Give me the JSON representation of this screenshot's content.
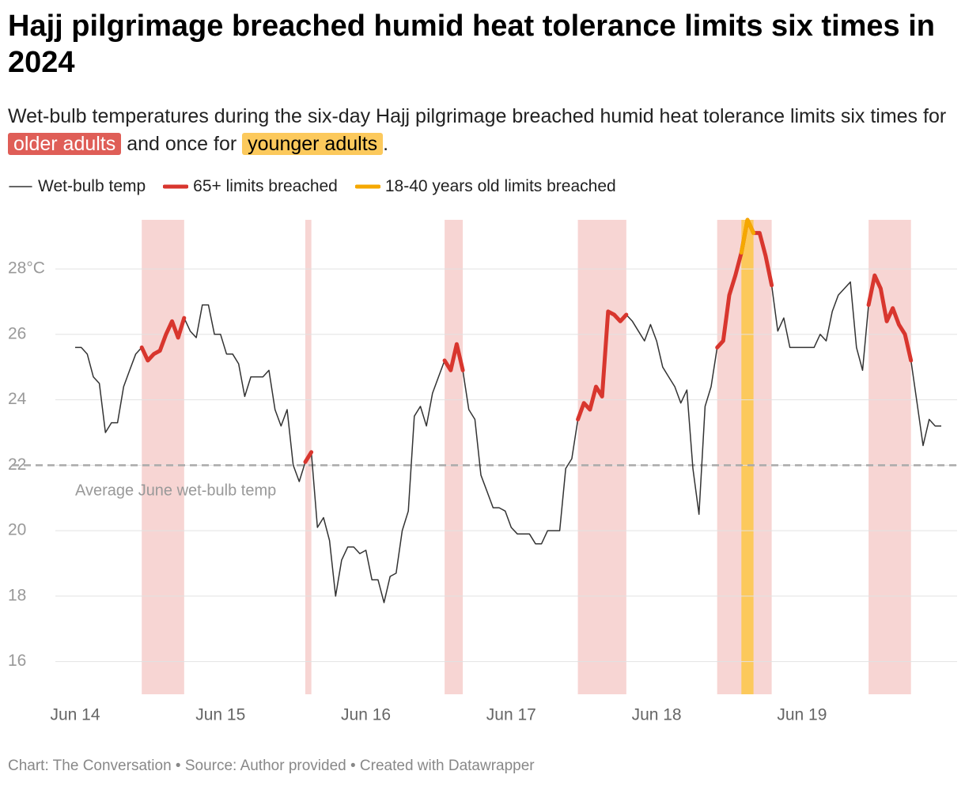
{
  "chart_data": {
    "type": "line",
    "title": "Hajj pilgrimage breached humid heat tolerance limits six times in 2024",
    "subtitle": [
      "Wet-bulb temperatures during the six-day Hajj pilgrimage breached humid heat tolerance limits six times for ",
      "older adults",
      " and once for ",
      "younger adults",
      "."
    ],
    "footer": "Chart: The Conversation • Source: Author provided • Created with Datawrapper",
    "categories": [
      "Jun 14",
      null,
      null,
      null,
      null,
      null,
      null,
      null,
      null,
      null,
      null,
      null,
      null,
      null,
      null,
      null,
      null,
      null,
      null,
      null,
      null,
      null,
      null,
      null,
      "Jun 15",
      null,
      null,
      null,
      null,
      null,
      null,
      null,
      null,
      null,
      null,
      null,
      null,
      null,
      null,
      null,
      null,
      null,
      null,
      null,
      null,
      null,
      null,
      null,
      "Jun 16",
      null,
      null,
      null,
      null,
      null,
      null,
      null,
      null,
      null,
      null,
      null,
      null,
      null,
      null,
      null,
      null,
      null,
      null,
      null,
      null,
      null,
      null,
      null,
      "Jun 17",
      null,
      null,
      null,
      null,
      null,
      null,
      null,
      null,
      null,
      null,
      null,
      null,
      null,
      null,
      null,
      null,
      null,
      null,
      null,
      null,
      null,
      null,
      null,
      "Jun 18",
      null,
      null,
      null,
      null,
      null,
      null,
      null,
      null,
      null,
      null,
      null,
      null,
      null,
      null,
      null,
      null,
      null,
      null,
      null,
      null,
      null,
      null,
      null,
      "Jun 19",
      null,
      null,
      null,
      null,
      null,
      null,
      null,
      null,
      null,
      null,
      null,
      null,
      null,
      null,
      null,
      null,
      null,
      null,
      null,
      null,
      null,
      null,
      null
    ],
    "series": [
      {
        "name": "Wet-bulb temp",
        "color": "#333333",
        "line_width": 1.5,
        "values": [
          25.6,
          25.6,
          25.4,
          24.7,
          24.5,
          23.0,
          23.3,
          23.3,
          24.4,
          24.9,
          25.4,
          25.6,
          25.2,
          25.4,
          25.5,
          26.0,
          26.4,
          25.9,
          26.5,
          26.1,
          25.9,
          26.9,
          26.9,
          26.0,
          26.0,
          25.4,
          25.4,
          25.1,
          24.1,
          24.7,
          24.7,
          24.7,
          24.9,
          23.7,
          23.2,
          23.7,
          22.0,
          21.5,
          22.1,
          22.4,
          20.1,
          20.4,
          19.7,
          18.0,
          19.1,
          19.5,
          19.5,
          19.3,
          19.4,
          18.5,
          18.5,
          17.8,
          18.6,
          18.7,
          20.0,
          20.6,
          23.5,
          23.8,
          23.2,
          24.2,
          24.7,
          25.2,
          24.9,
          25.7,
          24.9,
          23.7,
          23.4,
          21.7,
          21.2,
          20.7,
          20.7,
          20.6,
          20.1,
          19.9,
          19.9,
          19.9,
          19.6,
          19.6,
          20.0,
          20.0,
          20.0,
          21.9,
          22.2,
          23.4,
          23.9,
          23.7,
          24.4,
          24.1,
          26.7,
          26.6,
          26.4,
          26.6,
          26.4,
          26.1,
          25.8,
          26.3,
          25.8,
          25.0,
          24.7,
          24.4,
          23.9,
          24.3,
          21.9,
          20.5,
          23.8,
          24.4,
          25.6,
          25.8,
          27.2,
          27.8,
          28.5,
          29.5,
          29.1,
          29.1,
          28.4,
          27.5,
          26.1,
          26.5,
          25.6,
          25.6,
          25.6,
          25.6,
          25.6,
          26.0,
          25.8,
          26.7,
          27.2,
          27.4,
          27.6,
          25.6,
          24.9,
          26.9,
          27.8,
          27.4,
          26.4,
          26.8,
          26.3,
          26.0,
          25.2,
          23.9,
          22.6,
          23.4,
          23.2,
          23.2
        ]
      },
      {
        "name": "65+ limits breached",
        "color": "#d8362e",
        "band_color": "#f7d5d3",
        "line_width": 5,
        "values": [
          null,
          null,
          null,
          null,
          null,
          null,
          null,
          null,
          null,
          null,
          null,
          25.6,
          25.2,
          25.4,
          25.5,
          26.0,
          26.4,
          25.9,
          26.5,
          null,
          null,
          null,
          null,
          null,
          null,
          null,
          null,
          null,
          null,
          null,
          null,
          null,
          null,
          null,
          null,
          null,
          null,
          null,
          22.1,
          22.4,
          null,
          null,
          null,
          null,
          null,
          null,
          null,
          null,
          null,
          null,
          null,
          null,
          null,
          null,
          null,
          null,
          null,
          null,
          null,
          null,
          null,
          25.2,
          24.9,
          25.7,
          24.9,
          null,
          null,
          null,
          null,
          null,
          null,
          null,
          null,
          null,
          null,
          null,
          null,
          null,
          null,
          null,
          null,
          null,
          null,
          23.4,
          23.9,
          23.7,
          24.4,
          24.1,
          26.7,
          26.6,
          26.4,
          26.6,
          null,
          null,
          null,
          null,
          null,
          null,
          null,
          null,
          null,
          null,
          null,
          null,
          null,
          null,
          25.6,
          25.8,
          27.2,
          27.8,
          28.5,
          29.5,
          29.1,
          29.1,
          28.4,
          27.5,
          null,
          null,
          null,
          null,
          null,
          null,
          null,
          null,
          null,
          null,
          null,
          null,
          null,
          null,
          null,
          26.9,
          27.8,
          27.4,
          26.4,
          26.8,
          26.3,
          26.0,
          25.2,
          null,
          null,
          null,
          null,
          null
        ]
      },
      {
        "name": "18-40 years old limits breached",
        "color": "#f5a800",
        "band_color": "#fcc95c",
        "line_width": 5,
        "values": [
          null,
          null,
          null,
          null,
          null,
          null,
          null,
          null,
          null,
          null,
          null,
          null,
          null,
          null,
          null,
          null,
          null,
          null,
          null,
          null,
          null,
          null,
          null,
          null,
          null,
          null,
          null,
          null,
          null,
          null,
          null,
          null,
          null,
          null,
          null,
          null,
          null,
          null,
          null,
          null,
          null,
          null,
          null,
          null,
          null,
          null,
          null,
          null,
          null,
          null,
          null,
          null,
          null,
          null,
          null,
          null,
          null,
          null,
          null,
          null,
          null,
          null,
          null,
          null,
          null,
          null,
          null,
          null,
          null,
          null,
          null,
          null,
          null,
          null,
          null,
          null,
          null,
          null,
          null,
          null,
          null,
          null,
          null,
          null,
          null,
          null,
          null,
          null,
          null,
          null,
          null,
          null,
          null,
          null,
          null,
          null,
          null,
          null,
          null,
          null,
          null,
          null,
          null,
          null,
          null,
          null,
          null,
          null,
          null,
          null,
          28.5,
          29.5,
          29.1,
          null,
          null,
          null,
          null,
          null,
          null,
          null,
          null,
          null,
          null,
          null,
          null,
          null,
          null,
          null,
          null,
          null,
          null,
          null,
          null,
          null,
          null,
          null,
          null,
          null,
          null,
          null,
          null,
          null,
          null,
          null
        ]
      }
    ],
    "ylim": [
      15,
      29.5
    ],
    "yticks": [
      16,
      18,
      20,
      22,
      24,
      26,
      {
        "value": 28,
        "label": "28°C"
      }
    ],
    "grid": true,
    "reference_line": {
      "value": 22,
      "label": "Average June wet-bulb temp"
    }
  }
}
